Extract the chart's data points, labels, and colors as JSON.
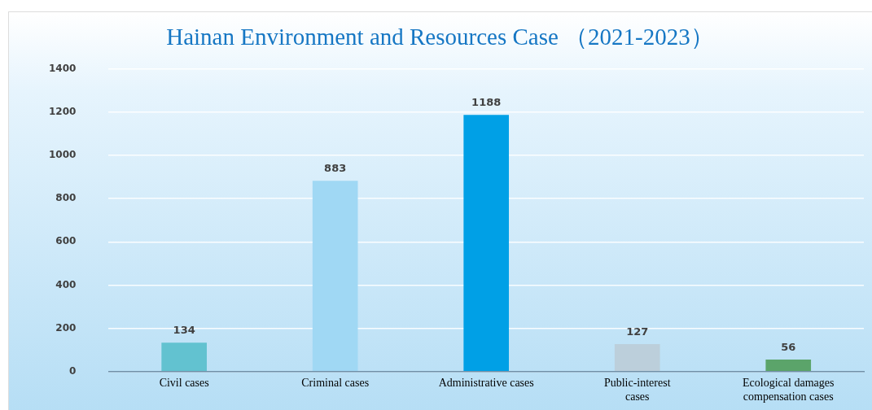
{
  "chart_data": {
    "type": "bar",
    "title": "Hainan Environment and Resources Case （2021-2023）",
    "categories": [
      "Civil cases",
      "Criminal cases",
      "Administrative cases",
      "Public-interest cases",
      "Ecological damages compensation cases"
    ],
    "values": [
      134,
      883,
      1188,
      127,
      56
    ],
    "colors": [
      "#62c2d0",
      "#a0d8f4",
      "#00a0e6",
      "#bccfdb",
      "#5ba46a"
    ],
    "ylim": [
      0,
      1400
    ],
    "yticks": [
      0,
      200,
      400,
      600,
      800,
      1000,
      1200,
      1400
    ],
    "grid": "y",
    "data_labels": true
  }
}
